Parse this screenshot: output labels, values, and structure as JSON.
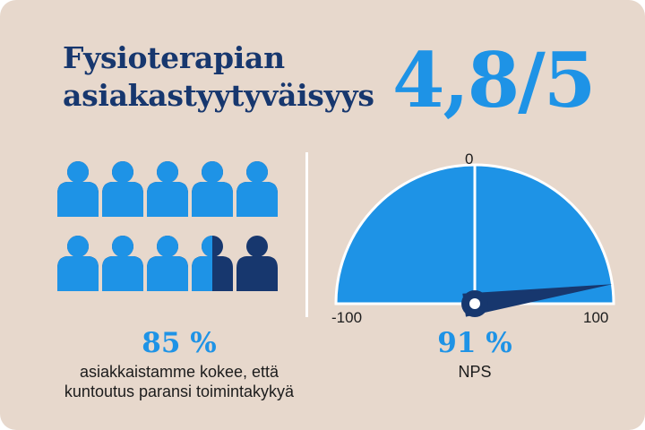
{
  "title_lines": [
    "Fysioterapian",
    "asiakastyytyväisyys"
  ],
  "satisfaction_score": "4,8/5",
  "people_chart": {
    "total_figures": 10,
    "filled_fraction": 0.85,
    "percent_text": "85 %",
    "caption_lines": [
      "asiakkaistamme kokee, että",
      "kuntoutus paransi toimintakykyä"
    ]
  },
  "nps_gauge": {
    "min_label": "-100",
    "mid_label": "0",
    "max_label": "100",
    "min": -100,
    "max": 100,
    "value": 91,
    "value_text": "91 %",
    "caption": "NPS"
  },
  "colors": {
    "background": "#e7d8cc",
    "accent_blue": "#1e93e6",
    "dark_blue": "#17376e",
    "title": "#17376e"
  }
}
